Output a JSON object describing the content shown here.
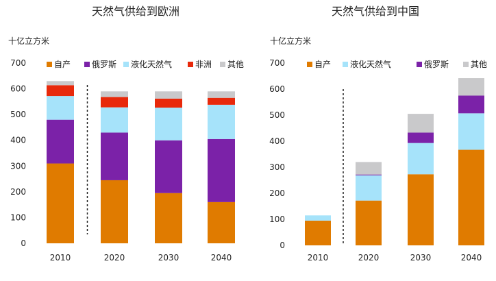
{
  "chart_data": [
    {
      "type": "bar",
      "stacked": true,
      "title": "天然气供给到欧洲",
      "ylabel": "十亿立方米",
      "categories": [
        "2010",
        "2020",
        "2030",
        "2040"
      ],
      "ylim": [
        0,
        700
      ],
      "yticks": [
        "0",
        "100",
        "200",
        "300",
        "400",
        "500",
        "600",
        "700"
      ],
      "divider_after_category": 0,
      "series": [
        {
          "name": "自产",
          "color": "#E07B00",
          "values": [
            310,
            245,
            195,
            160
          ]
        },
        {
          "name": "俄罗斯",
          "color": "#7B22A8",
          "values": [
            170,
            185,
            205,
            245
          ]
        },
        {
          "name": "液化天然气",
          "color": "#A6E3FA",
          "values": [
            92,
            98,
            127,
            133
          ]
        },
        {
          "name": "非洲",
          "color": "#E8290B",
          "values": [
            42,
            40,
            35,
            27
          ]
        },
        {
          "name": "其他",
          "color": "#C9C9CB",
          "values": [
            16,
            22,
            28,
            25
          ]
        }
      ],
      "legend_order": [
        0,
        1,
        2,
        3,
        4
      ],
      "legend_position": "top"
    },
    {
      "type": "bar",
      "stacked": true,
      "title": "天然气供给到中国",
      "ylabel": "十亿立方米",
      "categories": [
        "2010",
        "2020",
        "2030",
        "2040"
      ],
      "ylim": [
        0,
        700
      ],
      "yticks": [
        "0",
        "100",
        "200",
        "300",
        "400",
        "500",
        "600",
        "700"
      ],
      "divider_after_category": 0,
      "series": [
        {
          "name": "自产",
          "color": "#E07B00",
          "values": [
            95,
            172,
            273,
            367
          ]
        },
        {
          "name": "液化天然气",
          "color": "#A6E3FA",
          "values": [
            20,
            97,
            120,
            140
          ]
        },
        {
          "name": "俄罗斯",
          "color": "#7B22A8",
          "values": [
            0,
            3,
            40,
            68
          ]
        },
        {
          "name": "其他",
          "color": "#C9C9CB",
          "values": [
            0,
            48,
            72,
            67
          ]
        }
      ],
      "legend_order": [
        0,
        1,
        2,
        3
      ],
      "legend_position": "top"
    }
  ]
}
